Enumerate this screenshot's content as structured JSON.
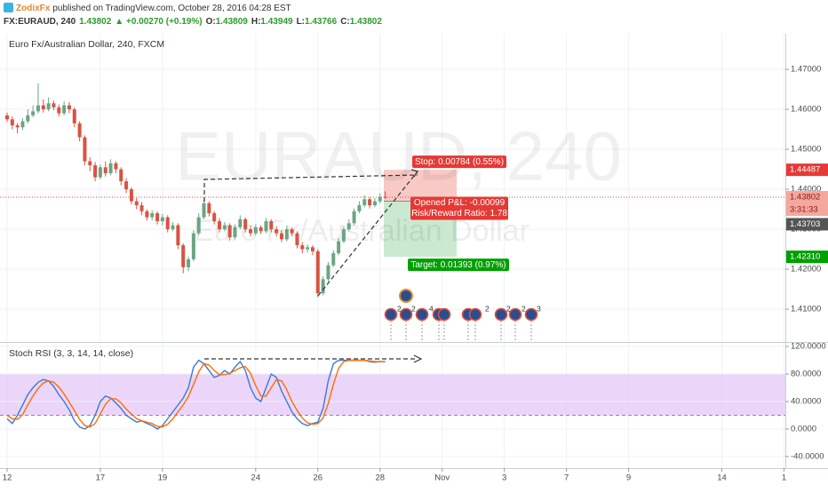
{
  "header": {
    "author": "ZodixFx",
    "published": "published on TradingView.com, October 28, 2016 04:28 EST",
    "symbol": "FX:EURAUD, 240",
    "last": "1.43802",
    "change": "▲ +0.00270 (+0.19%)",
    "ohlc": [
      {
        "label": "O:",
        "value": "1.43809"
      },
      {
        "label": "H:",
        "value": "1.43949"
      },
      {
        "label": "L:",
        "value": "1.43766"
      },
      {
        "label": "C:",
        "value": "1.43802"
      }
    ]
  },
  "chart_data": [
    {
      "type": "candlestick",
      "title": "Euro Fx/Australian Dollar, 240, FXCM",
      "watermark": "EURAUD, 240",
      "watermark_subtitle": "Euro Fx/Australian Dollar",
      "up_color": "#6ba583",
      "down_color": "#d75442",
      "grid": true,
      "open": [
        1.4585,
        1.4575,
        1.456,
        1.4555,
        1.457,
        1.4585,
        1.4595,
        1.461,
        1.46,
        1.4615,
        1.4605,
        1.459,
        1.461,
        1.46,
        1.4565,
        1.453,
        1.447,
        1.446,
        1.443,
        1.4455,
        1.444,
        1.4465,
        1.445,
        1.442,
        1.44,
        1.437,
        1.436,
        1.4345,
        1.433,
        1.434,
        1.432,
        1.433,
        1.43,
        1.431,
        1.426,
        1.4205,
        1.4225,
        1.429,
        1.433,
        1.4365,
        1.434,
        1.432,
        1.43,
        1.431,
        1.428,
        1.4305,
        1.4325,
        1.43,
        1.429,
        1.4305,
        1.4295,
        1.432,
        1.43,
        1.429,
        1.4275,
        1.43,
        1.429,
        1.426,
        1.425,
        1.4255,
        1.4245,
        1.414,
        1.4175,
        1.421,
        1.424,
        1.427,
        1.43,
        1.4315,
        1.4345,
        1.436,
        1.4375,
        1.436,
        1.437,
        1.43809
      ],
      "high": [
        1.4592,
        1.4582,
        1.4566,
        1.4578,
        1.46,
        1.461,
        1.4665,
        1.4625,
        1.463,
        1.4622,
        1.4612,
        1.462,
        1.4618,
        1.4605,
        1.457,
        1.4535,
        1.448,
        1.4468,
        1.4462,
        1.447,
        1.4475,
        1.447,
        1.4455,
        1.4428,
        1.4405,
        1.4378,
        1.4368,
        1.435,
        1.4348,
        1.4345,
        1.4338,
        1.4335,
        1.4318,
        1.4315,
        1.4265,
        1.4232,
        1.4298,
        1.434,
        1.4375,
        1.437,
        1.4345,
        1.4328,
        1.4318,
        1.4315,
        1.4312,
        1.4335,
        1.433,
        1.4308,
        1.4312,
        1.431,
        1.4328,
        1.4325,
        1.4308,
        1.4298,
        1.4308,
        1.4305,
        1.4295,
        1.4268,
        1.4262,
        1.426,
        1.425,
        1.4182,
        1.4218,
        1.4248,
        1.4278,
        1.4308,
        1.4325,
        1.4352,
        1.437,
        1.4385,
        1.438,
        1.4378,
        1.439,
        1.43949
      ],
      "low": [
        1.4568,
        1.455,
        1.454,
        1.4548,
        1.4565,
        1.458,
        1.459,
        1.4592,
        1.4595,
        1.4598,
        1.4582,
        1.4585,
        1.459,
        1.4555,
        1.452,
        1.446,
        1.4445,
        1.442,
        1.4425,
        1.4432,
        1.4435,
        1.444,
        1.441,
        1.439,
        1.4362,
        1.435,
        1.4335,
        1.4322,
        1.4322,
        1.4312,
        1.431,
        1.4292,
        1.4295,
        1.425,
        1.419,
        1.4195,
        1.422,
        1.4285,
        1.4325,
        1.4332,
        1.4312,
        1.4292,
        1.4295,
        1.4272,
        1.4275,
        1.43,
        1.4292,
        1.4282,
        1.4285,
        1.4288,
        1.429,
        1.4292,
        1.4282,
        1.4268,
        1.427,
        1.4282,
        1.4252,
        1.424,
        1.4242,
        1.4235,
        1.413,
        1.4135,
        1.417,
        1.4205,
        1.4235,
        1.4265,
        1.4295,
        1.431,
        1.434,
        1.4355,
        1.4352,
        1.4355,
        1.4365,
        1.43766
      ],
      "close": [
        1.4575,
        1.456,
        1.4555,
        1.457,
        1.4585,
        1.4595,
        1.461,
        1.46,
        1.4615,
        1.4605,
        1.459,
        1.461,
        1.46,
        1.4565,
        1.453,
        1.447,
        1.446,
        1.443,
        1.4455,
        1.444,
        1.4465,
        1.445,
        1.442,
        1.44,
        1.437,
        1.436,
        1.4345,
        1.433,
        1.434,
        1.432,
        1.433,
        1.43,
        1.431,
        1.426,
        1.4205,
        1.4225,
        1.429,
        1.433,
        1.4365,
        1.434,
        1.432,
        1.43,
        1.431,
        1.428,
        1.4305,
        1.4325,
        1.43,
        1.429,
        1.4305,
        1.4295,
        1.432,
        1.43,
        1.429,
        1.4275,
        1.43,
        1.429,
        1.426,
        1.425,
        1.4255,
        1.4245,
        1.414,
        1.4175,
        1.421,
        1.424,
        1.427,
        1.43,
        1.4315,
        1.4345,
        1.436,
        1.4375,
        1.436,
        1.437,
        1.43809,
        1.43802
      ],
      "xlim": [
        -1.37,
        150.26
      ],
      "xticks": [
        {
          "value": 0,
          "label": "12"
        },
        {
          "value": 18,
          "label": "17"
        },
        {
          "value": 30,
          "label": "19"
        },
        {
          "value": 48,
          "label": "24"
        },
        {
          "value": 60,
          "label": "26"
        },
        {
          "value": 72,
          "label": "28"
        },
        {
          "value": 84,
          "label": "Nov"
        },
        {
          "value": 96,
          "label": "3"
        },
        {
          "value": 108,
          "label": "7"
        },
        {
          "value": 120,
          "label": "9"
        },
        {
          "value": 138,
          "label": "14"
        },
        {
          "value": 150,
          "label": "1"
        }
      ],
      "ylim": [
        1.4018,
        1.4789
      ],
      "yticks": [
        {
          "value": 1.41,
          "label": "1.41000"
        },
        {
          "value": 1.42,
          "label": "1.42000"
        },
        {
          "value": 1.43,
          "label": "1.43000"
        },
        {
          "value": 1.44,
          "label": "1.44000"
        },
        {
          "value": 1.45,
          "label": "1.45000"
        },
        {
          "value": 1.46,
          "label": "1.46000"
        },
        {
          "value": 1.47,
          "label": "1.47000"
        }
      ],
      "last_price": 1.43802,
      "countdown": "3:31:33",
      "position": {
        "stop": 1.44487,
        "entry": 1.43703,
        "target": {
          "value": 1.4231,
          "label": "1.42310"
        },
        "stop_text": "Stop: 0.00784 (0.55%)",
        "pnl_text": "Opened P&L: -0.00099",
        "rr_text": "Risk/Reward Ratio: 1.78",
        "target_text": "Target: 0.01393 (0.97%)"
      },
      "event_badges": [
        "2",
        "2",
        "4",
        "2",
        "2",
        "2",
        "3"
      ]
    },
    {
      "type": "line",
      "title": "Stoch RSI (3, 3, 14, 14, close)",
      "band": [
        20,
        80
      ],
      "band_color": "#e4c8f7",
      "grid": true,
      "ylim": [
        -56.8,
        125.2
      ],
      "yticks": [
        {
          "value": -40,
          "label": "-40.0000"
        },
        {
          "value": 0,
          "label": "0.0000"
        },
        {
          "value": 40,
          "label": "40.0000"
        },
        {
          "value": 80,
          "label": "80.0000"
        },
        {
          "value": 120,
          "label": "120.0000"
        }
      ],
      "series": [
        {
          "color": "#3c78d8",
          "values": [
            15,
            8,
            20,
            35,
            50,
            60,
            68,
            72,
            70,
            62,
            50,
            40,
            28,
            12,
            3,
            0,
            5,
            20,
            40,
            48,
            45,
            38,
            30,
            20,
            15,
            10,
            12,
            8,
            5,
            0,
            5,
            15,
            25,
            35,
            45,
            60,
            90,
            100,
            95,
            85,
            75,
            78,
            85,
            80,
            90,
            98,
            85,
            60,
            45,
            40,
            60,
            80,
            75,
            55,
            40,
            25,
            15,
            8,
            5,
            8,
            10,
            30,
            70,
            95,
            100,
            100,
            100,
            100,
            100,
            100,
            98,
            97,
            98,
            98
          ]
        },
        {
          "color": "#ff6d00",
          "values": [
            20,
            15,
            14,
            21,
            35,
            48,
            59,
            67,
            70,
            68,
            61,
            51,
            39,
            27,
            14,
            5,
            3,
            8,
            22,
            36,
            44,
            44,
            38,
            29,
            22,
            15,
            12,
            10,
            8,
            4,
            3,
            7,
            15,
            25,
            35,
            47,
            65,
            83,
            95,
            93,
            85,
            79,
            79,
            81,
            85,
            89,
            91,
            81,
            63,
            48,
            48,
            60,
            72,
            70,
            57,
            40,
            27,
            16,
            9,
            7,
            8,
            16,
            37,
            65,
            88,
            98,
            100,
            100,
            100,
            100,
            99,
            98,
            98,
            98
          ]
        }
      ]
    }
  ]
}
